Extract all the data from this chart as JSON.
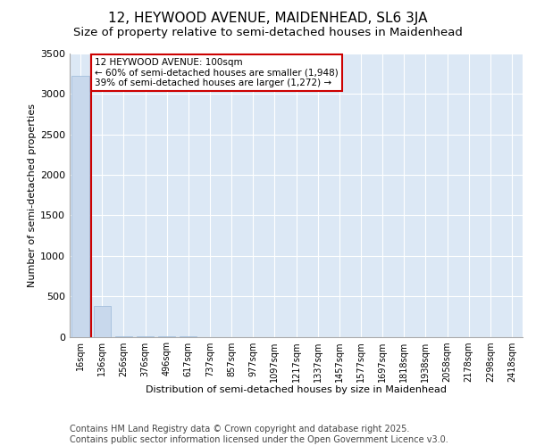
{
  "title": "12, HEYWOOD AVENUE, MAIDENHEAD, SL6 3JA",
  "subtitle": "Size of property relative to semi-detached houses in Maidenhead",
  "xlabel": "Distribution of semi-detached houses by size in Maidenhead",
  "ylabel": "Number of semi-detached properties",
  "categories": [
    "16sqm",
    "136sqm",
    "256sqm",
    "376sqm",
    "496sqm",
    "617sqm",
    "737sqm",
    "857sqm",
    "977sqm",
    "1097sqm",
    "1217sqm",
    "1337sqm",
    "1457sqm",
    "1577sqm",
    "1697sqm",
    "1818sqm",
    "1938sqm",
    "2058sqm",
    "2178sqm",
    "2298sqm",
    "2418sqm"
  ],
  "values": [
    3220,
    380,
    8,
    2,
    1,
    1,
    0,
    0,
    0,
    0,
    0,
    0,
    0,
    0,
    0,
    0,
    0,
    0,
    0,
    0,
    0
  ],
  "bar_color": "#c8d8ec",
  "bar_edge_color": "#9ab8d8",
  "vline_x": 0.5,
  "vline_color": "#cc0000",
  "annotation_text": "12 HEYWOOD AVENUE: 100sqm\n← 60% of semi-detached houses are smaller (1,948)\n39% of semi-detached houses are larger (1,272) →",
  "annotation_box_color": "#ffffff",
  "annotation_border_color": "#cc0000",
  "ylim": [
    0,
    3500
  ],
  "yticks": [
    0,
    500,
    1000,
    1500,
    2000,
    2500,
    3000,
    3500
  ],
  "background_color": "#dce8f5",
  "title_fontsize": 11,
  "subtitle_fontsize": 9.5,
  "axis_label_fontsize": 8,
  "tick_fontsize": 7,
  "annotation_fontsize": 7.5,
  "footer_text": "Contains HM Land Registry data © Crown copyright and database right 2025.\nContains public sector information licensed under the Open Government Licence v3.0.",
  "footer_fontsize": 7
}
